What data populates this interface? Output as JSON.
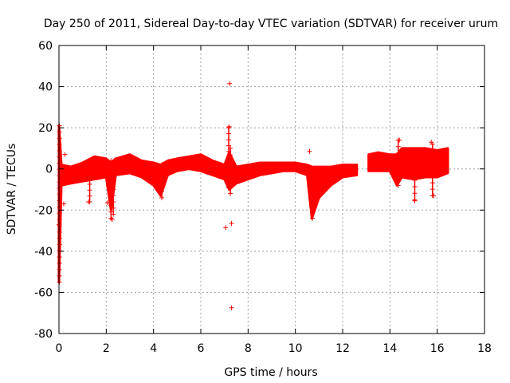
{
  "chart_data": {
    "type": "scatter",
    "title": "Day 250 of 2011, Sidereal Day-to-day VTEC variation (SDTVAR) for receiver urum",
    "xlabel": "GPS time / hours",
    "ylabel": "SDTVAR / TECUs",
    "xlim": [
      0,
      18
    ],
    "ylim": [
      -80,
      60
    ],
    "xticks": [
      0,
      2,
      4,
      6,
      8,
      10,
      12,
      14,
      16,
      18
    ],
    "yticks": [
      -80,
      -60,
      -40,
      -20,
      0,
      20,
      40,
      60
    ],
    "grid": true,
    "marker": "+",
    "color": "#ff0000",
    "envelope": [
      {
        "x": 0.0,
        "lo": -55,
        "hi": 21
      },
      {
        "x": 0.1,
        "lo": -8,
        "hi": 2
      },
      {
        "x": 0.5,
        "lo": -7,
        "hi": 1
      },
      {
        "x": 1.0,
        "lo": -6,
        "hi": 3
      },
      {
        "x": 1.5,
        "lo": -5,
        "hi": 6
      },
      {
        "x": 2.0,
        "lo": -4,
        "hi": 5
      },
      {
        "x": 2.2,
        "lo": -20,
        "hi": 3
      },
      {
        "x": 2.4,
        "lo": -3,
        "hi": 5
      },
      {
        "x": 3.0,
        "lo": -2,
        "hi": 7
      },
      {
        "x": 3.5,
        "lo": -4,
        "hi": 4
      },
      {
        "x": 4.0,
        "lo": -8,
        "hi": 3
      },
      {
        "x": 4.3,
        "lo": -13,
        "hi": 2
      },
      {
        "x": 4.6,
        "lo": -3,
        "hi": 4
      },
      {
        "x": 5.0,
        "lo": -1,
        "hi": 5
      },
      {
        "x": 5.5,
        "lo": 0,
        "hi": 6
      },
      {
        "x": 6.0,
        "lo": -1,
        "hi": 7
      },
      {
        "x": 6.5,
        "lo": -3,
        "hi": 4
      },
      {
        "x": 7.0,
        "lo": -5,
        "hi": 2
      },
      {
        "x": 7.2,
        "lo": -10,
        "hi": 8
      },
      {
        "x": 7.5,
        "lo": -7,
        "hi": 1
      },
      {
        "x": 8.0,
        "lo": -5,
        "hi": 2
      },
      {
        "x": 8.5,
        "lo": -3,
        "hi": 3
      },
      {
        "x": 9.0,
        "lo": -2,
        "hi": 3
      },
      {
        "x": 9.5,
        "lo": -1,
        "hi": 3
      },
      {
        "x": 10.0,
        "lo": -1,
        "hi": 3
      },
      {
        "x": 10.5,
        "lo": -3,
        "hi": 2
      },
      {
        "x": 10.7,
        "lo": -24,
        "hi": 1
      },
      {
        "x": 11.0,
        "lo": -14,
        "hi": 1
      },
      {
        "x": 11.5,
        "lo": -8,
        "hi": 1
      },
      {
        "x": 12.0,
        "lo": -4,
        "hi": 2
      },
      {
        "x": 12.6,
        "lo": -3,
        "hi": 2
      },
      {
        "x": 12.7,
        "gap": true
      },
      {
        "x": 13.1,
        "lo": -1,
        "hi": 7
      },
      {
        "x": 13.5,
        "lo": -1,
        "hi": 8
      },
      {
        "x": 14.0,
        "lo": -1,
        "hi": 7
      },
      {
        "x": 14.3,
        "lo": -8,
        "hi": 7
      },
      {
        "x": 14.5,
        "lo": -4,
        "hi": 10
      },
      {
        "x": 15.0,
        "lo": -5,
        "hi": 10
      },
      {
        "x": 15.5,
        "lo": -4,
        "hi": 10
      },
      {
        "x": 16.0,
        "lo": -4,
        "hi": 9
      },
      {
        "x": 16.45,
        "lo": -2,
        "hi": 10
      }
    ],
    "outliers": [
      {
        "x": 7.22,
        "y": 41.5
      },
      {
        "x": 7.2,
        "y": 20.5
      },
      {
        "x": 7.05,
        "y": -28.5
      },
      {
        "x": 7.3,
        "y": -26.5
      },
      {
        "x": 7.3,
        "y": -67.5
      },
      {
        "x": 10.6,
        "y": 8.5
      },
      {
        "x": 0.25,
        "y": 7
      },
      {
        "x": 15.75,
        "y": 13
      },
      {
        "x": 14.4,
        "y": 14
      },
      {
        "x": 0.0,
        "y": -27
      },
      {
        "x": 2.25,
        "y": -24.5
      },
      {
        "x": 2.05,
        "y": -16.5
      },
      {
        "x": 1.25,
        "y": -16
      },
      {
        "x": 0.2,
        "y": -17
      },
      {
        "x": 15.85,
        "y": -13
      },
      {
        "x": 15.05,
        "y": -15.5
      }
    ],
    "spikes": [
      {
        "x": 0.02,
        "lo": -55,
        "hi": 21
      },
      {
        "x": 2.2,
        "lo": -24,
        "hi": 4
      },
      {
        "x": 2.3,
        "lo": -22,
        "hi": 2
      },
      {
        "x": 4.35,
        "lo": -14,
        "hi": 2
      },
      {
        "x": 7.18,
        "lo": -9,
        "hi": 20
      },
      {
        "x": 7.25,
        "lo": -12,
        "hi": 10
      },
      {
        "x": 10.72,
        "lo": -24,
        "hi": 0
      },
      {
        "x": 14.35,
        "lo": -8,
        "hi": 14
      },
      {
        "x": 15.05,
        "lo": -15,
        "hi": 4
      },
      {
        "x": 15.8,
        "lo": -13,
        "hi": 12
      },
      {
        "x": 1.3,
        "lo": -16,
        "hi": 4
      }
    ]
  }
}
